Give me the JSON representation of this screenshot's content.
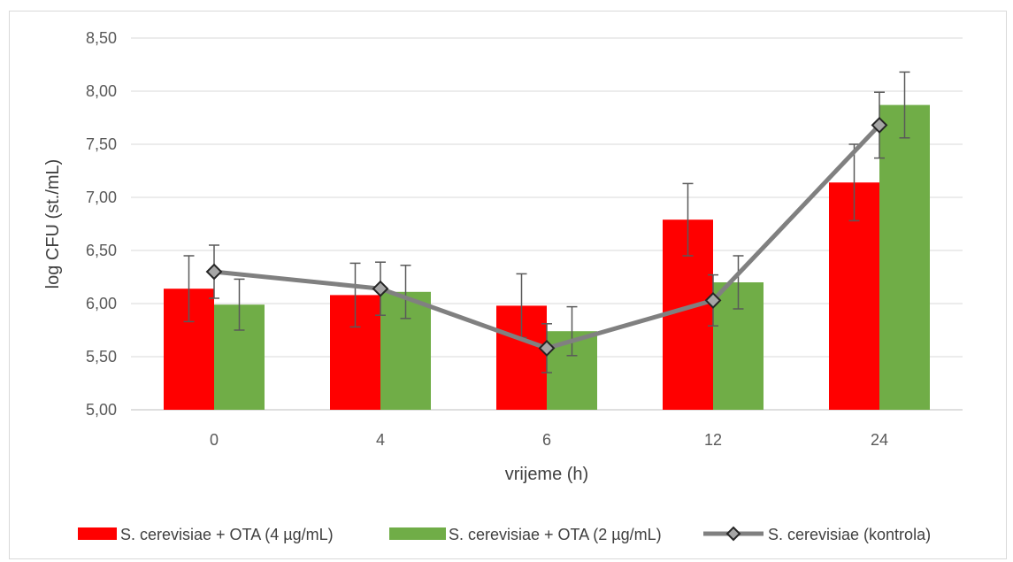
{
  "chart_data": {
    "type": "bar",
    "xlabel": "vrijeme (h)",
    "ylabel": "log CFU (st./mL)",
    "ylim": [
      5.0,
      8.5
    ],
    "yticks": [
      "5,00",
      "5,50",
      "6,00",
      "6,50",
      "7,00",
      "7,50",
      "8,00",
      "8,50"
    ],
    "ytick_values": [
      5.0,
      5.5,
      6.0,
      6.5,
      7.0,
      7.5,
      8.0,
      8.5
    ],
    "categories": [
      "0",
      "4",
      "6",
      "12",
      "24"
    ],
    "grid": true,
    "legend_position": "bottom",
    "series": [
      {
        "name": "S. cerevisiae + OTA (4 µg/mL)",
        "kind": "bar",
        "color": "#ff0000",
        "values": [
          6.14,
          6.08,
          5.98,
          6.79,
          7.14
        ],
        "errors": [
          0.31,
          0.3,
          0.3,
          0.34,
          0.36
        ]
      },
      {
        "name": "S. cerevisiae + OTA (2 µg/mL)",
        "kind": "bar",
        "color": "#70ad47",
        "values": [
          5.99,
          6.11,
          5.74,
          6.2,
          7.87
        ],
        "errors": [
          0.24,
          0.25,
          0.23,
          0.25,
          0.31
        ]
      },
      {
        "name": "S. cerevisiae (kontrola)",
        "kind": "line",
        "color": "#808080",
        "marker_fill": "#a6a6a6",
        "values": [
          6.3,
          6.14,
          5.58,
          6.03,
          7.68
        ],
        "errors": [
          0.25,
          0.25,
          0.23,
          0.24,
          0.31
        ]
      }
    ]
  }
}
